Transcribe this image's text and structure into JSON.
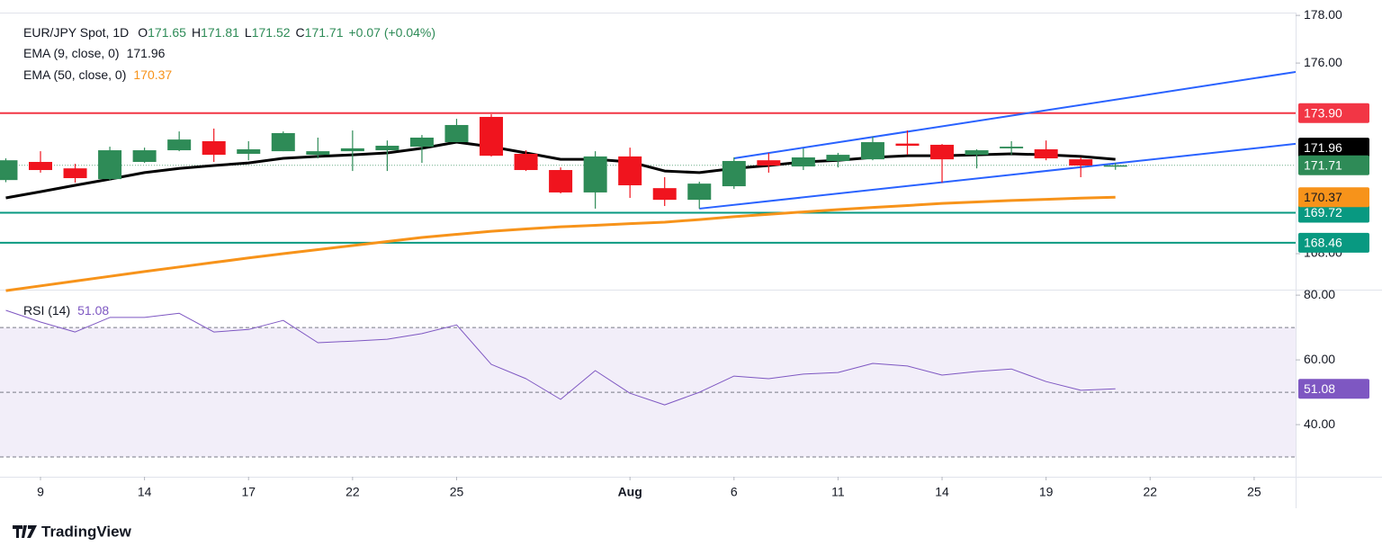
{
  "chart_data": {
    "type": "candlestick",
    "title": "EUR/JPY Spot, 1D",
    "header": {
      "prefixes": [
        "O",
        "H",
        "L",
        "C"
      ],
      "change_label": "+0.07 (+0.04%)"
    },
    "categories": [
      null,
      "9",
      null,
      null,
      "14",
      null,
      null,
      "17",
      null,
      null,
      "22",
      null,
      null,
      "25",
      null,
      null,
      null,
      null,
      "Aug",
      null,
      null,
      "6",
      null,
      null,
      "11",
      null,
      null,
      "14",
      null,
      null,
      "19",
      null,
      null,
      "22",
      null,
      null,
      "25"
    ],
    "open": [
      171.09,
      171.85,
      171.58,
      171.13,
      171.85,
      172.34,
      172.72,
      172.19,
      172.3,
      172.15,
      172.3,
      172.34,
      172.49,
      172.68,
      173.74,
      172.19,
      171.51,
      170.57,
      172.08,
      170.75,
      170.26,
      170.83,
      171.92,
      171.66,
      171.89,
      171.96,
      172.62,
      172.57,
      172.15,
      172.42,
      172.38,
      171.96,
      171.65,
      null,
      null,
      null,
      null
    ],
    "high": [
      172.0,
      172.3,
      171.77,
      172.49,
      172.45,
      173.13,
      173.25,
      172.72,
      173.13,
      172.87,
      173.17,
      172.75,
      172.98,
      173.66,
      173.85,
      172.34,
      171.62,
      172.3,
      172.45,
      171.21,
      171.02,
      172.04,
      172.23,
      172.42,
      172.23,
      172.91,
      173.17,
      172.6,
      172.38,
      172.72,
      172.75,
      172.04,
      171.81,
      null,
      null,
      null,
      null
    ],
    "low": [
      171.0,
      171.4,
      170.98,
      171.09,
      171.81,
      172.3,
      171.85,
      171.92,
      172.3,
      172.0,
      171.47,
      171.47,
      171.81,
      172.68,
      172.08,
      171.47,
      170.53,
      169.89,
      170.34,
      170.0,
      169.89,
      170.72,
      171.4,
      171.51,
      171.62,
      171.92,
      172.15,
      170.98,
      171.58,
      172.15,
      171.92,
      171.21,
      171.52,
      null,
      null,
      null,
      null
    ],
    "close": [
      171.92,
      171.51,
      171.17,
      172.34,
      172.34,
      172.79,
      172.15,
      172.38,
      173.06,
      172.3,
      172.42,
      172.53,
      172.87,
      173.4,
      172.11,
      171.51,
      170.57,
      172.08,
      170.87,
      170.26,
      170.94,
      171.89,
      171.7,
      172.04,
      172.15,
      172.68,
      172.53,
      171.96,
      172.34,
      172.49,
      172.0,
      171.7,
      171.71,
      null,
      null,
      null,
      null
    ],
    "up_color": "#2e8b57",
    "down_color": "#f0141e",
    "series": [
      {
        "name": "EMA (9, close, 0)",
        "color": "#000000",
        "values": [
          170.34,
          170.6,
          170.87,
          171.13,
          171.4,
          171.58,
          171.7,
          171.81,
          172.0,
          172.08,
          172.15,
          172.23,
          172.42,
          172.68,
          172.49,
          172.23,
          171.96,
          171.96,
          171.85,
          171.47,
          171.4,
          171.58,
          171.7,
          171.85,
          171.92,
          172.04,
          172.11,
          172.11,
          172.15,
          172.19,
          172.15,
          172.08,
          171.96,
          null,
          null,
          null,
          null
        ]
      },
      {
        "name": "EMA (50, close, 0)",
        "color": "#f7931a",
        "values": [
          166.45,
          166.65,
          166.85,
          167.05,
          167.25,
          167.44,
          167.63,
          167.82,
          168.0,
          168.17,
          168.34,
          168.51,
          168.68,
          168.81,
          168.94,
          169.04,
          169.13,
          169.19,
          169.26,
          169.32,
          169.43,
          169.55,
          169.65,
          169.75,
          169.85,
          169.94,
          170.02,
          170.11,
          170.17,
          170.23,
          170.28,
          170.33,
          170.37,
          null,
          null,
          null,
          null
        ]
      }
    ],
    "levels": [
      {
        "value": 173.9,
        "label": "173.90",
        "color": "#f23645"
      },
      {
        "value": 169.72,
        "label": "169.72",
        "color": "#089981"
      },
      {
        "value": 168.46,
        "label": "168.46",
        "color": "#089981"
      }
    ],
    "trendlines": [
      {
        "color": "#2962ff",
        "x": [
          21,
          36
        ],
        "y": [
          172.0,
          175.36
        ]
      },
      {
        "color": "#2962ff",
        "x": [
          20,
          36
        ],
        "y": [
          169.89,
          172.42
        ]
      }
    ],
    "ylim": [
      166.49,
      178.08
    ],
    "yticks": [
      {
        "value": 178,
        "label": "178.00"
      },
      {
        "value": 176,
        "label": "176.00"
      },
      {
        "value": 168,
        "label": "168.00"
      }
    ],
    "rsi": {
      "name": "RSI (14)",
      "color": "#7e57c2",
      "values": [
        75.3,
        71.7,
        68.6,
        73.1,
        73.1,
        74.4,
        68.6,
        69.4,
        72.2,
        65.3,
        65.8,
        66.4,
        68.1,
        70.8,
        58.6,
        54.2,
        47.8,
        56.7,
        49.7,
        46.1,
        50.0,
        55.0,
        54.2,
        55.6,
        56.1,
        58.9,
        58.1,
        55.3,
        56.4,
        57.2,
        53.3,
        50.6,
        51.08,
        null,
        null,
        null,
        null
      ],
      "ylim": [
        23.9,
        81.7
      ],
      "yticks": [
        {
          "value": 80,
          "label": "80.00"
        },
        {
          "value": 60,
          "label": "60.00"
        },
        {
          "value": 40,
          "label": "40.00"
        }
      ],
      "levels": [
        70,
        50,
        30
      ]
    },
    "watermark": "TradingView"
  }
}
